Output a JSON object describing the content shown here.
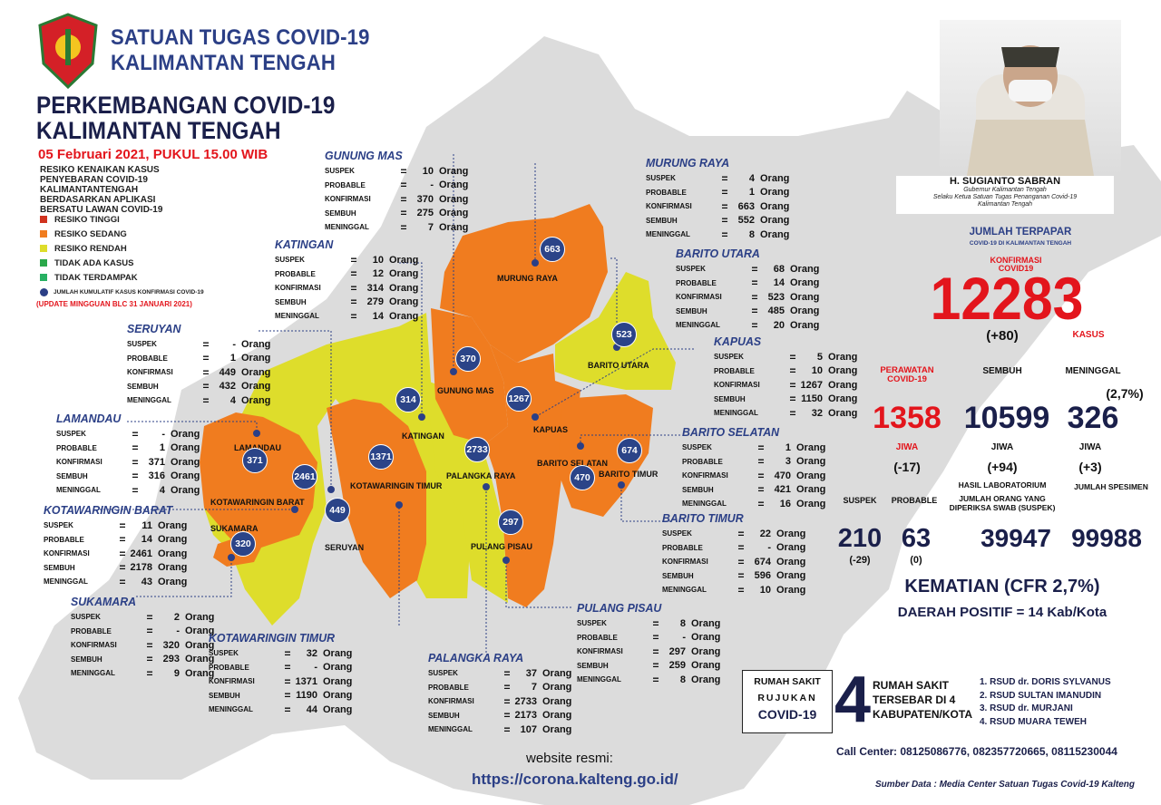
{
  "header": {
    "org_line1": "SATUAN TUGAS COVID-19",
    "org_line2": "KALIMANTAN TENGAH",
    "title_line1": "PERKEMBANGAN COVID-19",
    "title_line2": "KALIMANTAN TENGAH",
    "date": "05 Februari 2021, PUKUL 15.00 WIB"
  },
  "legend": {
    "note": "RESIKO KENAIKAN KASUS PENYEBARAN COVID-19 KALIMANTANTENGAH BERDASARKAN APLIKASI BERSATU LAWAN COVID-19",
    "items": [
      {
        "label": "RESIKO TINGGI",
        "color": "#d0331f"
      },
      {
        "label": "RESIKO SEDANG",
        "color": "#f07c1f"
      },
      {
        "label": "RESIKO RENDAH",
        "color": "#dedd2b"
      },
      {
        "label": "TIDAK ADA KASUS",
        "color": "#2aa84a"
      },
      {
        "label": "TIDAK TERDAMPAK",
        "color": "#27b062"
      }
    ],
    "cumulative_note": "JUMLAH KUMULATIF KASUS KONFIRMASI COVID-19",
    "update_note": "(UPDATE MINGGUAN BLC 31 JANUARI 2021)"
  },
  "stat_labels": [
    "SUSPEK",
    "PROBABLE",
    "KONFIRMASI",
    "SEMBUH",
    "MENINGGAL"
  ],
  "unit": "Orang",
  "eq": "=",
  "regions": [
    {
      "name": "GUNUNG MAS",
      "values": [
        "10",
        "-",
        "370",
        "275",
        "7"
      ]
    },
    {
      "name": "MURUNG RAYA",
      "values": [
        "4",
        "1",
        "663",
        "552",
        "8"
      ]
    },
    {
      "name": "KATINGAN",
      "values": [
        "10",
        "12",
        "314",
        "279",
        "14"
      ]
    },
    {
      "name": "BARITO UTARA",
      "values": [
        "68",
        "14",
        "523",
        "485",
        "20"
      ]
    },
    {
      "name": "SERUYAN",
      "values": [
        "-",
        "1",
        "449",
        "432",
        "4"
      ]
    },
    {
      "name": "KAPUAS",
      "values": [
        "5",
        "10",
        "1267",
        "1150",
        "32"
      ]
    },
    {
      "name": "LAMANDAU",
      "values": [
        "-",
        "1",
        "371",
        "316",
        "4"
      ]
    },
    {
      "name": "BARITO SELATAN",
      "values": [
        "1",
        "3",
        "470",
        "421",
        "16"
      ]
    },
    {
      "name": "KOTAWARINGIN BARAT",
      "values": [
        "11",
        "14",
        "2461",
        "2178",
        "43"
      ]
    },
    {
      "name": "BARITO TIMUR",
      "values": [
        "22",
        "-",
        "674",
        "596",
        "10"
      ]
    },
    {
      "name": "SUKAMARA",
      "values": [
        "2",
        "-",
        "320",
        "293",
        "9"
      ]
    },
    {
      "name": "PULANG PISAU",
      "values": [
        "8",
        "-",
        "297",
        "259",
        "8"
      ]
    },
    {
      "name": "KOTAWARINGIN TIMUR",
      "values": [
        "32",
        "-",
        "1371",
        "1190",
        "44"
      ]
    },
    {
      "name": "PALANGKA RAYA",
      "values": [
        "37",
        "7",
        "2733",
        "2173",
        "107"
      ]
    }
  ],
  "map_labels": [
    "MURUNG RAYA",
    "BARITO UTARA",
    "GUNUNG MAS",
    "KAPUAS",
    "KATINGAN",
    "LAMANDAU",
    "PALANGKA RAYA",
    "BARITO SELATAN",
    "BARITO TIMUR",
    "KOTAWARINGIN BARAT",
    "KOTAWARINGIN TIMUR",
    "SUKAMARA",
    "SERUYAN",
    "PULANG PISAU"
  ],
  "bubbles": [
    "663",
    "523",
    "370",
    "314",
    "1267",
    "2733",
    "371",
    "2461",
    "1371",
    "449",
    "320",
    "297",
    "470",
    "674"
  ],
  "governor": {
    "name": "H. SUGIANTO SABRAN",
    "role1": "Gubernur Kalimantan Tengah",
    "role2": "Selaku Ketua Satuan Tugas Penanganan Covid-19",
    "role3": "Kalimantan Tengah"
  },
  "summary": {
    "title": "JUMLAH TERPAPAR",
    "subtitle": "COVID-19 DI KALIMANTAN TENGAH",
    "konfirmasi_label": "KONFIRMASI",
    "konfirmasi_sub": "COVID19",
    "konfirmasi": "12283",
    "konfirmasi_delta": "(+80)",
    "kasus": "KASUS",
    "perawatan_label": "PERAWATAN",
    "perawatan_sub": "COVID-19",
    "perawatan": "1358",
    "perawatan_delta": "(-17)",
    "sembuh_label": "SEMBUH",
    "sembuh": "10599",
    "sembuh_delta": "(+94)",
    "meninggal_label": "MENINGGAL",
    "meninggal": "326",
    "meninggal_pct": "(2,7%)",
    "meninggal_delta": "(+3)",
    "jiwa": "JIWA",
    "suspek_label": "SUSPEK",
    "suspek": "210",
    "suspek_delta": "(-29)",
    "probable_label": "PROBABLE",
    "probable": "63",
    "probable_delta": "(0)",
    "lab_label1": "HASIL LABORATORIUM",
    "lab_label2": "JUMLAH ORANG YANG",
    "lab_label3": "DIPERIKSA SWAB (SUSPEK)",
    "lab": "39947",
    "spesimen_label": "JUMLAH SPESIMEN",
    "spesimen": "99988",
    "kematian": "KEMATIAN (CFR 2,7%)",
    "daerah": "DAERAH POSITIF = 14 Kab/Kota"
  },
  "hospital": {
    "box_line1": "RUMAH SAKIT",
    "box_line2": "RUJUKAN",
    "box_line3": "COVID-19",
    "count": "4",
    "desc1": "RUMAH SAKIT",
    "desc2": "TERSEBAR DI 4",
    "desc3": "KABUPATEN/KOTA",
    "list": [
      "1. RSUD dr. DORIS SYLVANUS",
      "2. RSUD SULTAN IMANUDIN",
      "3. RSUD dr. MURJANI",
      "4. RSUD MUARA TEWEH"
    ]
  },
  "call_center_label": "Call Center",
  "call_center": ": 08125086776, 082357720665, 08115230044",
  "website_label": "website resmi:",
  "website_url": "https://corona.kalteng.go.id/",
  "source": "Sumber Data : Media Center Satuan Tugas Covid-19 Kalteng",
  "colors": {
    "brand": "#2b3f86",
    "red": "#e3151c",
    "orange": "#f07c1f",
    "yellow": "#dedd2b",
    "landmass": "#dcdcdc"
  }
}
